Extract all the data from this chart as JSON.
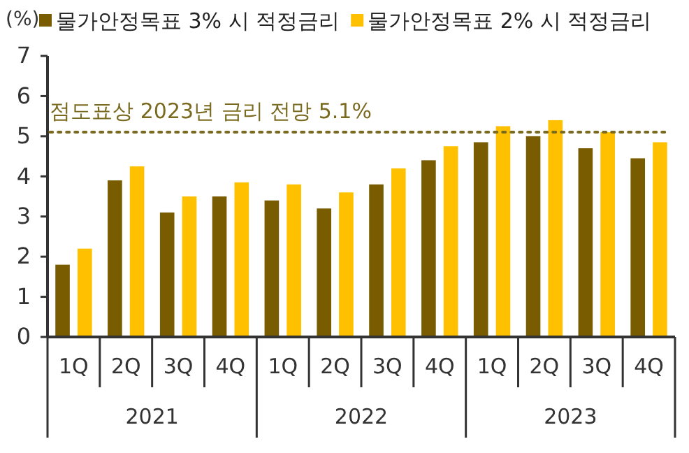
{
  "chart_data": {
    "type": "bar",
    "ylabel": "(%)",
    "categories": [
      "1Q",
      "2Q",
      "3Q",
      "4Q",
      "1Q",
      "2Q",
      "3Q",
      "4Q",
      "1Q",
      "2Q",
      "3Q",
      "4Q"
    ],
    "series": [
      {
        "name": "물가안정목표 3% 시 적정금리",
        "color": "#7a5c00",
        "values": [
          1.8,
          3.9,
          3.1,
          3.5,
          3.4,
          3.2,
          3.8,
          4.4,
          4.85,
          5.0,
          4.7,
          4.45
        ]
      },
      {
        "name": "물가안정목표 2% 시 적정금리",
        "color": "#ffc000",
        "values": [
          2.2,
          4.25,
          3.5,
          3.85,
          3.8,
          3.6,
          4.2,
          4.75,
          5.25,
          5.4,
          5.1,
          4.85
        ]
      }
    ],
    "ylim": [
      0,
      7
    ],
    "yticks": [
      0,
      1,
      2,
      3,
      4,
      5,
      6,
      7
    ],
    "legend": "top",
    "grid": false,
    "ref_lines": [
      {
        "axis": "y",
        "value": 5.1,
        "label": "점도표상 2023년 금리 전망 5.1%",
        "color": "#7a6a20",
        "line_style": "dotted"
      }
    ],
    "annotations": [
      "2021",
      "2022",
      "2023"
    ]
  }
}
